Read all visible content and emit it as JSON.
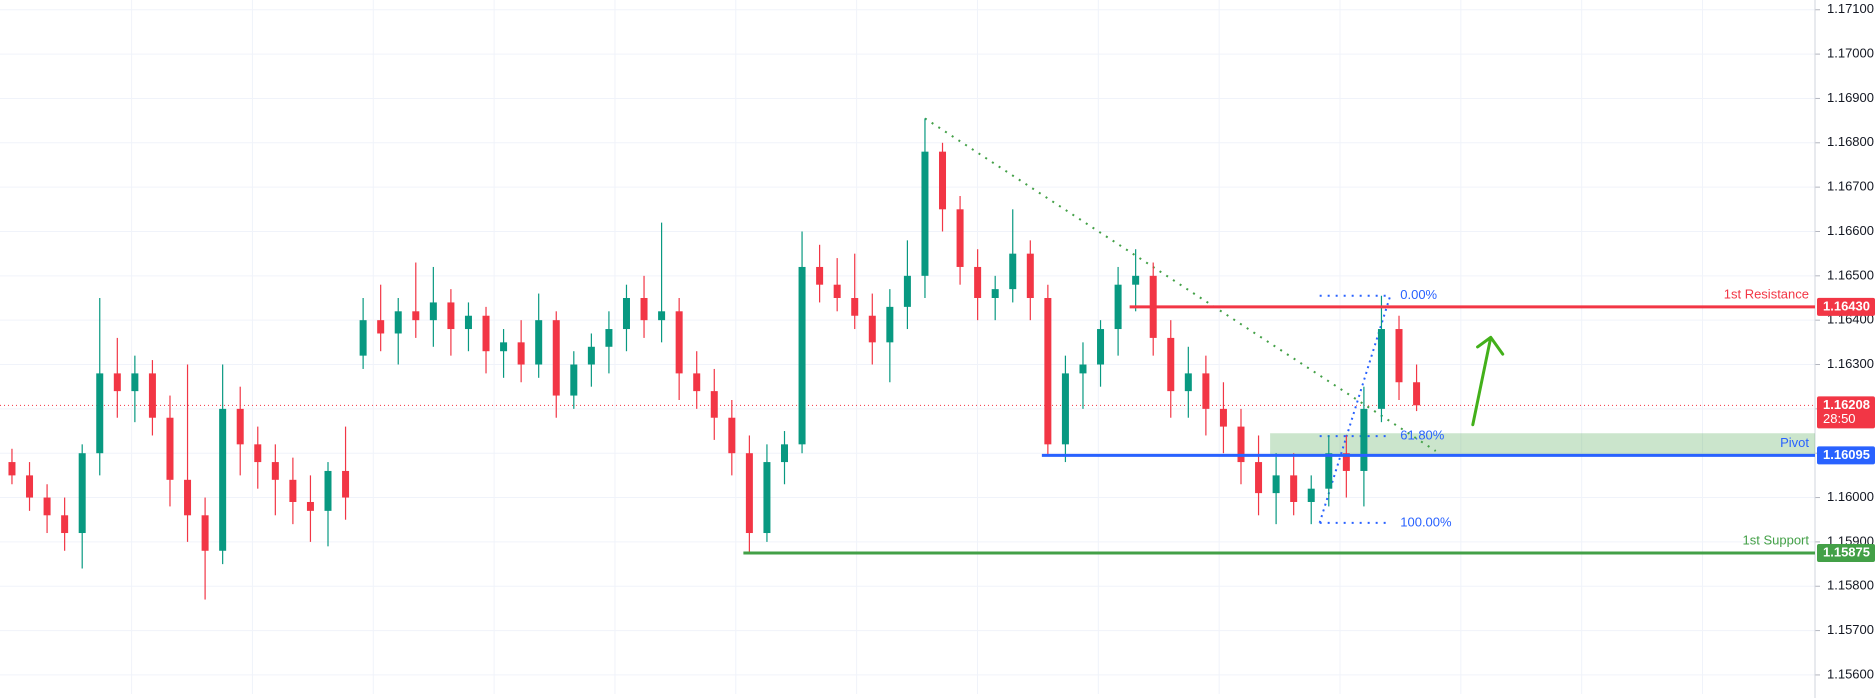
{
  "chart_data": {
    "type": "candlestick",
    "ohlc": [
      [
        1.1608,
        1.1611,
        1.1603,
        1.1605
      ],
      [
        1.1605,
        1.1608,
        1.1597,
        1.16
      ],
      [
        1.16,
        1.1603,
        1.1592,
        1.1596
      ],
      [
        1.1596,
        1.16,
        1.1588,
        1.1592
      ],
      [
        1.1592,
        1.1612,
        1.1584,
        1.161
      ],
      [
        1.161,
        1.1645,
        1.1605,
        1.1628
      ],
      [
        1.1628,
        1.1636,
        1.1618,
        1.1624
      ],
      [
        1.1624,
        1.1632,
        1.1617,
        1.1628
      ],
      [
        1.1628,
        1.1631,
        1.1614,
        1.1618
      ],
      [
        1.1618,
        1.1623,
        1.1598,
        1.1604
      ],
      [
        1.1604,
        1.163,
        1.159,
        1.1596
      ],
      [
        1.1596,
        1.16,
        1.1577,
        1.1588
      ],
      [
        1.1588,
        1.163,
        1.1585,
        1.162
      ],
      [
        1.162,
        1.1625,
        1.1605,
        1.1612
      ],
      [
        1.1612,
        1.1616,
        1.1602,
        1.1608
      ],
      [
        1.1608,
        1.1612,
        1.1596,
        1.1604
      ],
      [
        1.1604,
        1.1609,
        1.1594,
        1.1599
      ],
      [
        1.1599,
        1.1605,
        1.159,
        1.1597
      ],
      [
        1.1597,
        1.1608,
        1.1589,
        1.1606
      ],
      [
        1.1606,
        1.1616,
        1.1595,
        1.16
      ],
      [
        1.1632,
        1.1645,
        1.1629,
        1.164
      ],
      [
        1.164,
        1.1648,
        1.1633,
        1.1637
      ],
      [
        1.1637,
        1.1645,
        1.163,
        1.1642
      ],
      [
        1.1642,
        1.1653,
        1.1636,
        1.164
      ],
      [
        1.164,
        1.1652,
        1.1634,
        1.1644
      ],
      [
        1.1644,
        1.1647,
        1.1632,
        1.1638
      ],
      [
        1.1638,
        1.1644,
        1.1633,
        1.1641
      ],
      [
        1.1641,
        1.1643,
        1.1628,
        1.1633
      ],
      [
        1.1633,
        1.1638,
        1.1627,
        1.1635
      ],
      [
        1.1635,
        1.164,
        1.1626,
        1.163
      ],
      [
        1.163,
        1.1646,
        1.1627,
        1.164
      ],
      [
        1.164,
        1.1642,
        1.1618,
        1.1623
      ],
      [
        1.1623,
        1.1633,
        1.162,
        1.163
      ],
      [
        1.163,
        1.1637,
        1.1625,
        1.1634
      ],
      [
        1.1634,
        1.1642,
        1.1628,
        1.1638
      ],
      [
        1.1638,
        1.1648,
        1.1633,
        1.1645
      ],
      [
        1.1645,
        1.165,
        1.1636,
        1.164
      ],
      [
        1.164,
        1.1662,
        1.1635,
        1.1642
      ],
      [
        1.1642,
        1.1645,
        1.1622,
        1.1628
      ],
      [
        1.1628,
        1.1633,
        1.162,
        1.1624
      ],
      [
        1.1624,
        1.1629,
        1.1613,
        1.1618
      ],
      [
        1.1618,
        1.1622,
        1.1605,
        1.161
      ],
      [
        1.161,
        1.1614,
        1.15875,
        1.1592
      ],
      [
        1.1592,
        1.1612,
        1.159,
        1.1608
      ],
      [
        1.1608,
        1.1615,
        1.1603,
        1.1612
      ],
      [
        1.1612,
        1.166,
        1.161,
        1.1652
      ],
      [
        1.1652,
        1.1657,
        1.1644,
        1.1648
      ],
      [
        1.1648,
        1.1654,
        1.1642,
        1.1645
      ],
      [
        1.1645,
        1.1655,
        1.1638,
        1.1641
      ],
      [
        1.1641,
        1.1646,
        1.163,
        1.1635
      ],
      [
        1.1635,
        1.1647,
        1.1626,
        1.1643
      ],
      [
        1.1643,
        1.1658,
        1.1638,
        1.165
      ],
      [
        1.165,
        1.16855,
        1.1645,
        1.1678
      ],
      [
        1.1678,
        1.168,
        1.166,
        1.1665
      ],
      [
        1.1665,
        1.1668,
        1.1648,
        1.1652
      ],
      [
        1.1652,
        1.1656,
        1.164,
        1.1645
      ],
      [
        1.1645,
        1.165,
        1.164,
        1.1647
      ],
      [
        1.1647,
        1.1665,
        1.1644,
        1.1655
      ],
      [
        1.1655,
        1.1658,
        1.164,
        1.1645
      ],
      [
        1.1645,
        1.1648,
        1.16095,
        1.1612
      ],
      [
        1.1612,
        1.1632,
        1.1608,
        1.1628
      ],
      [
        1.1628,
        1.1635,
        1.162,
        1.163
      ],
      [
        1.163,
        1.164,
        1.1625,
        1.1638
      ],
      [
        1.1638,
        1.1652,
        1.1632,
        1.1648
      ],
      [
        1.1648,
        1.1656,
        1.1642,
        1.165
      ],
      [
        1.165,
        1.1653,
        1.1632,
        1.1636
      ],
      [
        1.1636,
        1.164,
        1.1618,
        1.1624
      ],
      [
        1.1624,
        1.1634,
        1.1618,
        1.1628
      ],
      [
        1.1628,
        1.1632,
        1.1614,
        1.162
      ],
      [
        1.162,
        1.1626,
        1.161,
        1.1616
      ],
      [
        1.1616,
        1.162,
        1.1603,
        1.1608
      ],
      [
        1.1608,
        1.1614,
        1.1596,
        1.1601
      ],
      [
        1.1601,
        1.161,
        1.1594,
        1.1605
      ],
      [
        1.1605,
        1.161,
        1.1596,
        1.1599
      ],
      [
        1.1599,
        1.1605,
        1.1594,
        1.1602
      ],
      [
        1.1602,
        1.1614,
        1.1598,
        1.161
      ],
      [
        1.161,
        1.1614,
        1.16,
        1.1606
      ],
      [
        1.1606,
        1.1625,
        1.1598,
        1.162
      ],
      [
        1.162,
        1.16455,
        1.1617,
        1.1638
      ],
      [
        1.1638,
        1.1641,
        1.1622,
        1.1626
      ],
      [
        1.1626,
        1.163,
        1.16195,
        1.16208
      ]
    ],
    "up_color": "#089981",
    "down_color": "#f23645",
    "ylim": [
      1.15557,
      1.17122
    ],
    "yticks": [
      {
        "value": 1.156,
        "label": "1.15600"
      },
      {
        "value": 1.157,
        "label": "1.15700"
      },
      {
        "value": 1.158,
        "label": "1.15800"
      },
      {
        "value": 1.159,
        "label": "1.15900"
      },
      {
        "value": 1.16,
        "label": "1.16000"
      },
      {
        "value": 1.161,
        "label": "1.16100"
      },
      {
        "value": 1.162,
        "label": "1.16200"
      },
      {
        "value": 1.163,
        "label": "1.16300"
      },
      {
        "value": 1.164,
        "label": "1.16400"
      },
      {
        "value": 1.165,
        "label": "1.16500"
      },
      {
        "value": 1.166,
        "label": "1.16600"
      },
      {
        "value": 1.167,
        "label": "1.16700"
      },
      {
        "value": 1.168,
        "label": "1.16800"
      },
      {
        "value": 1.169,
        "label": "1.16900"
      },
      {
        "value": 1.17,
        "label": "1.17000"
      },
      {
        "value": 1.171,
        "label": "1.17100"
      }
    ],
    "grid": true,
    "levels": [
      {
        "name": "1st Resistance",
        "value": 1.1643,
        "label": "1.16430",
        "color": "#f23645"
      },
      {
        "name": "Pivot",
        "value": 1.16095,
        "label": "1.16095",
        "color": "#2962ff"
      },
      {
        "name": "1st Support",
        "value": 1.15875,
        "label": "1.15875",
        "color": "#43a047"
      }
    ],
    "pivot_zone": [
      1.16095,
      1.16145
    ],
    "last": {
      "value": 1.16208,
      "label": "1.16208",
      "countdown": "28:50",
      "color": "#f23645"
    },
    "fib": {
      "high": 1.16455,
      "low": 1.15943,
      "color": "#2962ff",
      "levels": [
        {
          "ratio": 0,
          "label": "0.00%"
        },
        {
          "ratio": 61.8,
          "label": "61.80%"
        },
        {
          "ratio": 100,
          "label": "100.00%"
        }
      ]
    },
    "trendline": [
      1.16855,
      1.16105
    ]
  }
}
